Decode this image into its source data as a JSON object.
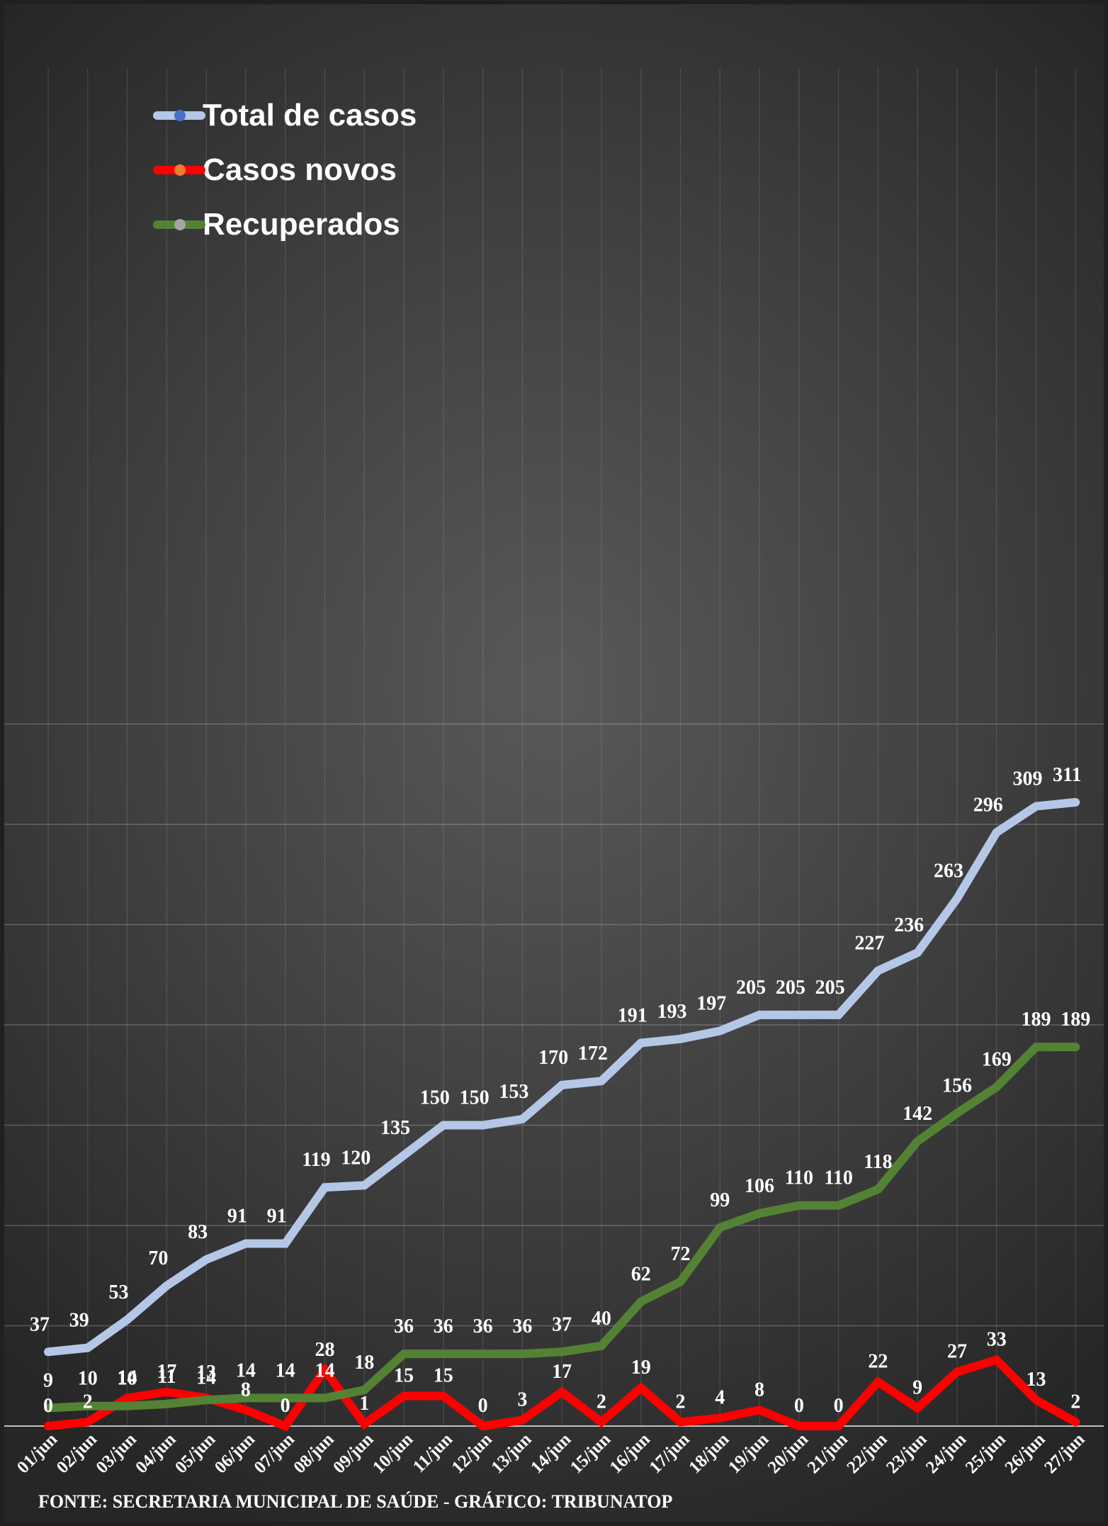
{
  "legend": [
    {
      "label": "Total de casos",
      "line_color": "#b4c7e7",
      "marker_color": "#4472c4"
    },
    {
      "label": "Casos novos",
      "line_color": "#ff0000",
      "marker_color": "#ed7d31"
    },
    {
      "label": "Recuperados",
      "line_color": "#548235",
      "marker_color": "#a5a5a5"
    }
  ],
  "source": "FONTE: SECRETARIA MUNICIPAL DE SAÚDE - GRÁFICO: TRIBUNATOP",
  "chart_data": {
    "type": "line",
    "title": "",
    "xlabel": "",
    "ylabel": "",
    "ylim": [
      0,
      350
    ],
    "grid": true,
    "legend_position": "top-left",
    "categories": [
      "01/jun",
      "02/jun",
      "03/jun",
      "04/jun",
      "05/jun",
      "06/jun",
      "07/jun",
      "08/jun",
      "09/jun",
      "10/jun",
      "11/jun",
      "12/jun",
      "13/jun",
      "14/jun",
      "15/jun",
      "16/jun",
      "17/jun",
      "18/jun",
      "19/jun",
      "20/jun",
      "21/jun",
      "22/jun",
      "23/jun",
      "24/jun",
      "25/jun",
      "26/jun",
      "27/jun"
    ],
    "series": [
      {
        "name": "Total de casos",
        "color": "#b4c7e7",
        "values": [
          37,
          39,
          53,
          70,
          83,
          91,
          91,
          119,
          120,
          135,
          150,
          150,
          153,
          170,
          172,
          191,
          193,
          197,
          205,
          205,
          205,
          227,
          236,
          263,
          296,
          309,
          311
        ]
      },
      {
        "name": "Casos novos",
        "color": "#ff0000",
        "values": [
          0,
          2,
          14,
          17,
          14,
          8,
          0,
          28,
          1,
          15,
          15,
          0,
          3,
          17,
          2,
          19,
          2,
          4,
          8,
          0,
          0,
          22,
          9,
          27,
          33,
          13,
          2
        ]
      },
      {
        "name": "Recuperados",
        "color": "#548235",
        "values": [
          9,
          10,
          10,
          11,
          13,
          14,
          14,
          14,
          18,
          36,
          36,
          36,
          36,
          37,
          40,
          62,
          72,
          99,
          106,
          110,
          110,
          118,
          142,
          156,
          169,
          189,
          189
        ]
      }
    ]
  }
}
